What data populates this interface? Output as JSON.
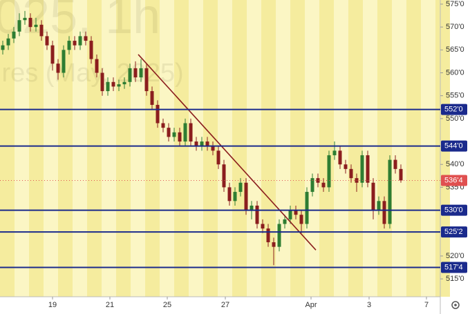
{
  "chart_data": {
    "type": "candlestick",
    "watermark_symbol": "025, 1h",
    "watermark_desc": "ires (May, 2025)",
    "x": [
      0.5,
      1.5,
      2.5,
      3.5,
      4.5,
      5.5,
      6.5,
      7.5,
      8.5,
      9.5,
      10.5,
      11.5,
      12.5,
      13.5,
      14.5,
      15.5,
      16.5,
      17.5,
      18.5,
      19.5,
      20.5,
      21.5,
      22.5,
      23.5,
      24.5,
      25.5,
      26.5,
      27.5,
      28.5,
      29.5,
      30.5,
      31.5,
      32.5,
      33.5,
      34.5,
      35.5,
      36.5,
      37.5,
      38.5,
      39.5,
      40.5,
      41.5,
      42.5,
      43.5,
      44.5,
      45.5,
      46.5,
      47.5,
      48.5,
      49.5,
      50.5,
      51.5,
      52.5,
      53.5,
      54.5,
      55.5,
      56.5,
      57.5,
      58.5,
      59.5,
      60.5,
      61.5,
      62.5,
      63.5,
      64.5,
      65.5,
      66.5,
      67.5,
      68.5,
      69.5,
      70.5,
      71.5,
      72.5
    ],
    "open": [
      565,
      566,
      567.5,
      569,
      571.5,
      572,
      570,
      570.5,
      568,
      566,
      562,
      560,
      565,
      567,
      566,
      568,
      567,
      563,
      560,
      556,
      558,
      557,
      557.5,
      558,
      561,
      559,
      561,
      556,
      553,
      549,
      548,
      546,
      547,
      545,
      549,
      545,
      544,
      545,
      544,
      543,
      540,
      535,
      532,
      534,
      536,
      530,
      531,
      527,
      526,
      523,
      522,
      527,
      528,
      530,
      529,
      527,
      534,
      537,
      536,
      535,
      542,
      543,
      540,
      539,
      537,
      536,
      542,
      536,
      530,
      532,
      527,
      541,
      539
    ],
    "high": [
      567,
      568.5,
      570,
      573,
      573.5,
      573,
      572,
      571.5,
      569,
      567,
      563,
      566,
      568,
      568,
      569,
      569,
      568,
      564,
      561,
      559,
      559,
      558.5,
      559,
      562,
      562.5,
      563,
      562,
      557,
      554,
      550,
      549,
      548,
      548,
      550,
      550,
      546,
      546,
      546,
      545,
      544,
      541,
      536,
      535,
      537,
      537,
      532,
      532,
      528,
      527,
      524,
      528,
      529,
      531,
      531,
      530,
      535,
      538,
      538,
      537,
      543,
      545,
      544,
      541,
      540,
      538,
      543,
      543,
      537,
      533,
      533,
      542,
      542,
      540
    ],
    "low": [
      564,
      565,
      566.5,
      568,
      570.5,
      569,
      569,
      567,
      565,
      560.5,
      558.5,
      559,
      564,
      565,
      565,
      566,
      562,
      559,
      555,
      555,
      556,
      556,
      556.5,
      557,
      558,
      558,
      555,
      552,
      548,
      547,
      545,
      545,
      544,
      544,
      544,
      543,
      543,
      543,
      542,
      539,
      534,
      531,
      531,
      533,
      529,
      528,
      526,
      525,
      522,
      518,
      521,
      526,
      527,
      528,
      525,
      526,
      533,
      535,
      534,
      534,
      541,
      539,
      538,
      536,
      534,
      535,
      535,
      528,
      529,
      526,
      526,
      538,
      536
    ],
    "close": [
      566,
      567.5,
      569,
      571.5,
      572,
      570,
      570.5,
      568,
      566,
      562,
      560,
      565,
      567,
      566,
      568,
      567,
      563,
      560,
      556,
      558,
      557,
      557.5,
      558,
      561,
      559,
      561,
      556,
      553,
      549,
      548,
      546,
      547,
      545,
      549,
      545,
      544,
      545,
      544,
      543,
      540,
      535,
      532,
      534,
      536,
      530,
      531,
      527,
      526,
      523,
      522,
      527,
      528,
      530,
      529,
      527,
      534,
      537,
      536,
      535,
      542,
      543,
      540,
      539,
      537,
      536,
      542,
      536,
      530,
      532,
      527,
      541,
      539,
      536.5
    ],
    "up_color": "#2e7d32",
    "down_color": "#8b1e1e",
    "xlim": [
      0,
      79.625
    ],
    "xticks": [
      {
        "value": 9.5,
        "label": "19"
      },
      {
        "value": 19.875,
        "label": "21"
      },
      {
        "value": 30.25,
        "label": "25"
      },
      {
        "value": 40.75,
        "label": "27"
      },
      {
        "value": 56.25,
        "label": "Apr"
      },
      {
        "value": 66.75,
        "label": "3"
      },
      {
        "value": 77.125,
        "label": "7"
      }
    ],
    "ylim": [
      511.1,
      575.9
    ],
    "yticks": [
      {
        "value": 575,
        "label": "575'0"
      },
      {
        "value": 570,
        "label": "570'0"
      },
      {
        "value": 565,
        "label": "565'0"
      },
      {
        "value": 560,
        "label": "560'0"
      },
      {
        "value": 555,
        "label": "555'0"
      },
      {
        "value": 550,
        "label": "550'0"
      },
      {
        "value": 540,
        "label": "540'0"
      },
      {
        "value": 535,
        "label": "535'0"
      },
      {
        "value": 520,
        "label": "520'0"
      },
      {
        "value": 515,
        "label": "515'0"
      }
    ],
    "levels": [
      {
        "value": 552,
        "label": "552'0"
      },
      {
        "value": 544,
        "label": "544'0"
      },
      {
        "value": 530,
        "label": "530'0"
      },
      {
        "value": 525.25,
        "label": "525'2"
      },
      {
        "value": 517.5,
        "label": "517'4"
      }
    ],
    "level_color": "#1a2a8c",
    "current": {
      "value": 536.5,
      "label": "536'4"
    },
    "current_color": "#e05050",
    "trendline": {
      "x": [
        25,
        57.125
      ],
      "y": [
        564,
        521.3
      ],
      "color": "#8b1e1e"
    }
  }
}
